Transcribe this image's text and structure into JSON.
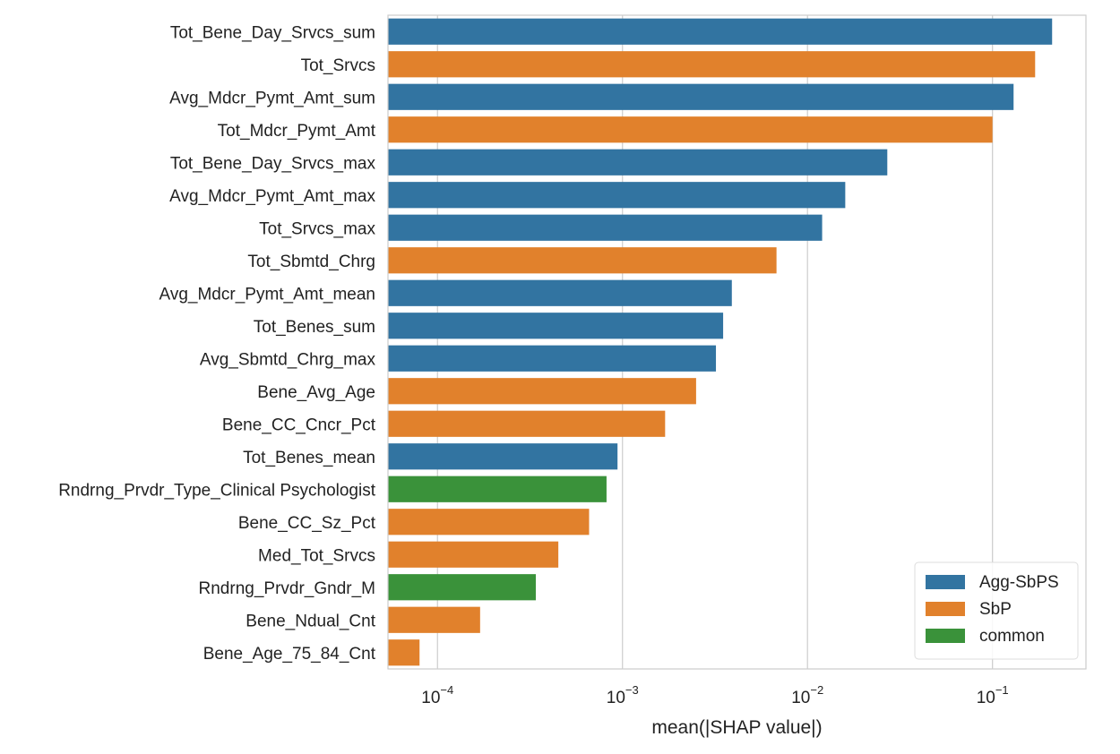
{
  "chart_data": {
    "type": "bar",
    "orientation": "horizontal",
    "x_scale": "log",
    "xlabel": "mean(|SHAP value|)",
    "xlim": [
      5.4e-05,
      0.32
    ],
    "x_ticks": [
      {
        "value": 0.0001,
        "base": "10",
        "exp": "−4"
      },
      {
        "value": 0.001,
        "base": "10",
        "exp": "−3"
      },
      {
        "value": 0.01,
        "base": "10",
        "exp": "−2"
      },
      {
        "value": 0.1,
        "base": "10",
        "exp": "−1"
      }
    ],
    "grid": "vertical",
    "legend_position": "bottom-right",
    "legend": [
      {
        "name": "Agg-SbPS",
        "color": "#3274a1"
      },
      {
        "name": "SbP",
        "color": "#e1812c"
      },
      {
        "name": "common",
        "color": "#3a923a"
      }
    ],
    "bars": [
      {
        "label": "Tot_Bene_Day_Srvcs_sum",
        "value": 0.21,
        "group": "Agg-SbPS"
      },
      {
        "label": "Tot_Srvcs",
        "value": 0.17,
        "group": "SbP"
      },
      {
        "label": "Avg_Mdcr_Pymt_Amt_sum",
        "value": 0.13,
        "group": "Agg-SbPS"
      },
      {
        "label": "Tot_Mdcr_Pymt_Amt",
        "value": 0.1,
        "group": "SbP"
      },
      {
        "label": "Tot_Bene_Day_Srvcs_max",
        "value": 0.027,
        "group": "Agg-SbPS"
      },
      {
        "label": "Avg_Mdcr_Pymt_Amt_max",
        "value": 0.016,
        "group": "Agg-SbPS"
      },
      {
        "label": "Tot_Srvcs_max",
        "value": 0.012,
        "group": "Agg-SbPS"
      },
      {
        "label": "Tot_Sbmtd_Chrg",
        "value": 0.0068,
        "group": "SbP"
      },
      {
        "label": "Avg_Mdcr_Pymt_Amt_mean",
        "value": 0.0039,
        "group": "Agg-SbPS"
      },
      {
        "label": "Tot_Benes_sum",
        "value": 0.0035,
        "group": "Agg-SbPS"
      },
      {
        "label": "Avg_Sbmtd_Chrg_max",
        "value": 0.0032,
        "group": "Agg-SbPS"
      },
      {
        "label": "Bene_Avg_Age",
        "value": 0.0025,
        "group": "SbP"
      },
      {
        "label": "Bene_CC_Cncr_Pct",
        "value": 0.0017,
        "group": "SbP"
      },
      {
        "label": "Tot_Benes_mean",
        "value": 0.00094,
        "group": "Agg-SbPS"
      },
      {
        "label": "Rndrng_Prvdr_Type_Clinical Psychologist",
        "value": 0.00082,
        "group": "common"
      },
      {
        "label": "Bene_CC_Sz_Pct",
        "value": 0.00066,
        "group": "SbP"
      },
      {
        "label": "Med_Tot_Srvcs",
        "value": 0.00045,
        "group": "SbP"
      },
      {
        "label": "Rndrng_Prvdr_Gndr_M",
        "value": 0.00034,
        "group": "common"
      },
      {
        "label": "Bene_Ndual_Cnt",
        "value": 0.00017,
        "group": "SbP"
      },
      {
        "label": "Bene_Age_75_84_Cnt",
        "value": 8e-05,
        "group": "SbP"
      }
    ]
  }
}
